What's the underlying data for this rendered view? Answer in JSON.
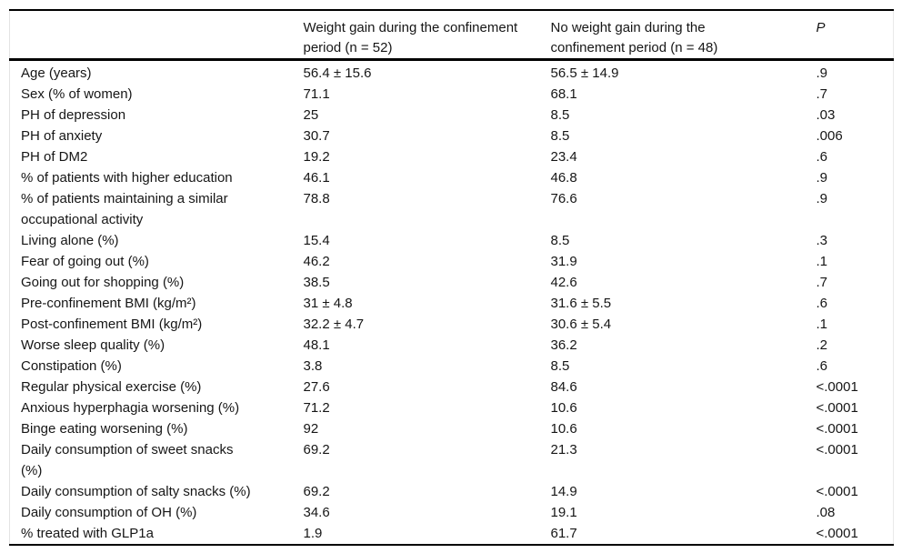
{
  "table": {
    "columns": [
      "",
      "Weight gain during the confinement\nperiod (n = 52)",
      "No weight gain during the\nconfinement period (n = 48)",
      "P"
    ],
    "rows": [
      [
        "Age (years)",
        "56.4 ± 15.6",
        "56.5 ± 14.9",
        ".9"
      ],
      [
        "Sex (% of women)",
        "71.1",
        "68.1",
        ".7"
      ],
      [
        "PH of depression",
        "25",
        "8.5",
        ".03"
      ],
      [
        "PH of anxiety",
        "30.7",
        "8.5",
        ".006"
      ],
      [
        "PH of DM2",
        "19.2",
        "23.4",
        ".6"
      ],
      [
        "% of patients with higher education",
        "46.1",
        "46.8",
        ".9"
      ],
      [
        "% of patients maintaining a similar\noccupational activity",
        "78.8",
        "76.6",
        ".9"
      ],
      [
        "Living alone (%)",
        "15.4",
        "8.5",
        ".3"
      ],
      [
        "Fear of going out (%)",
        "46.2",
        "31.9",
        ".1"
      ],
      [
        "Going out for shopping (%)",
        "38.5",
        "42.6",
        ".7"
      ],
      [
        "Pre-confinement BMI (kg/m²)",
        "31 ± 4.8",
        "31.6 ± 5.5",
        ".6"
      ],
      [
        "Post-confinement BMI (kg/m²)",
        "32.2 ± 4.7",
        "30.6 ± 5.4",
        ".1"
      ],
      [
        "Worse sleep quality (%)",
        "48.1",
        "36.2",
        ".2"
      ],
      [
        "Constipation (%)",
        "3.8",
        "8.5",
        ".6"
      ],
      [
        "Regular physical exercise (%)",
        "27.6",
        "84.6",
        "<.0001"
      ],
      [
        "Anxious hyperphagia worsening (%)",
        "71.2",
        "10.6",
        "<.0001"
      ],
      [
        "Binge eating worsening (%)",
        "92",
        "10.6",
        "<.0001"
      ],
      [
        "Daily consumption of sweet snacks\n(%)",
        "69.2",
        "21.3",
        "<.0001"
      ],
      [
        "Daily consumption of salty snacks (%)",
        "69.2",
        "14.9",
        "<.0001"
      ],
      [
        "Daily consumption of OH (%)",
        "34.6",
        "19.1",
        ".08"
      ],
      [
        "% treated with GLP1a",
        "1.9",
        "61.7",
        "<.0001"
      ]
    ]
  }
}
